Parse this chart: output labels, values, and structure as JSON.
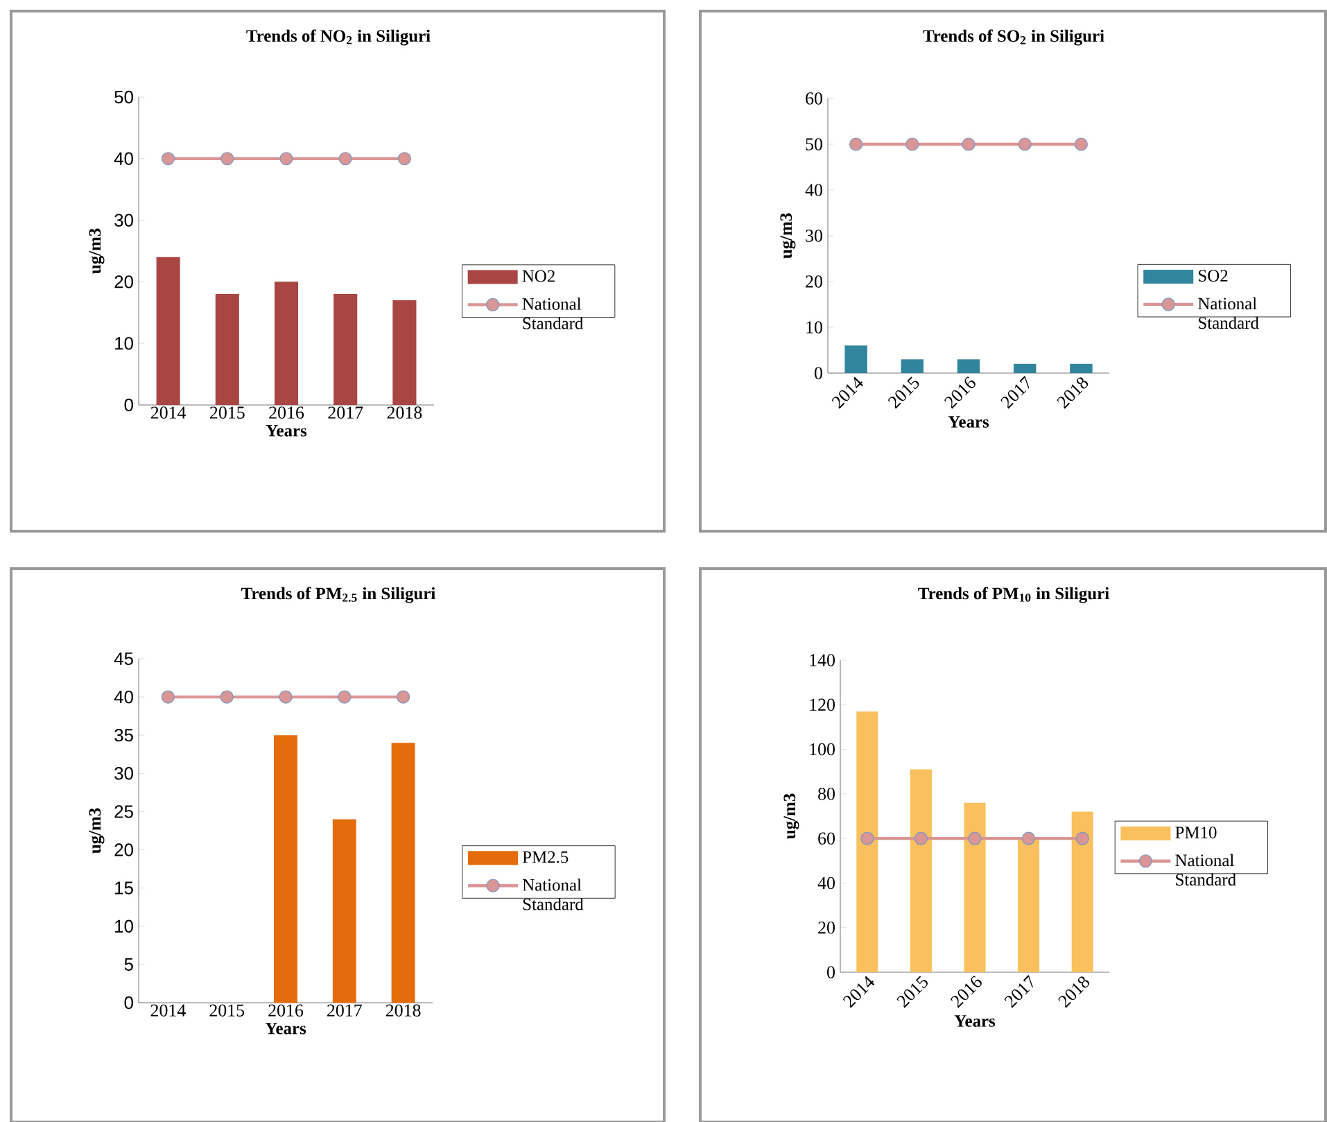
{
  "chart_data": [
    {
      "type": "bar",
      "title": "Trends of NO$_{2}$ in Siliguri",
      "xlabel": "Years",
      "ylabel": "ug/m3",
      "categories": [
        "2014",
        "2015",
        "2016",
        "2017",
        "2018"
      ],
      "ylim": [
        0,
        50
      ],
      "yticks": [
        0,
        10,
        20,
        30,
        40,
        50
      ],
      "legend": "right",
      "series": [
        {
          "name": "NO2",
          "color": "#a94543",
          "values": [
            24,
            18,
            20,
            18,
            17
          ]
        },
        {
          "name": "National Standard",
          "type": "line",
          "marker": "circle",
          "color": "#d99694",
          "values": [
            40,
            40,
            40,
            40,
            40
          ]
        }
      ]
    },
    {
      "type": "bar",
      "title": "Trends of SO$_{2}$ in Siliguri",
      "xlabel": "Years",
      "ylabel": "ug/m3",
      "categories": [
        "2014",
        "2015",
        "2016",
        "2017",
        "2018"
      ],
      "ylim": [
        0,
        60
      ],
      "yticks": [
        0,
        10,
        20,
        30,
        40,
        50,
        60
      ],
      "legend": "right",
      "series": [
        {
          "name": "SO2",
          "color": "#31859c",
          "values": [
            6,
            3,
            3,
            2,
            2
          ]
        },
        {
          "name": "National Standard",
          "type": "line",
          "marker": "circle",
          "color": "#d99694",
          "values": [
            50,
            50,
            50,
            50,
            50
          ]
        }
      ]
    },
    {
      "type": "bar",
      "title": "Trends of PM$_{2.5}$ in Siliguri",
      "xlabel": "Years",
      "ylabel": "ug/m3",
      "categories": [
        "2014",
        "2015",
        "2016",
        "2017",
        "2018"
      ],
      "ylim": [
        0,
        45
      ],
      "yticks": [
        0,
        5,
        10,
        15,
        20,
        25,
        30,
        35,
        40,
        45
      ],
      "legend": "right",
      "series": [
        {
          "name": "PM2.5",
          "color": "#e46c0a",
          "values": [
            null,
            null,
            35,
            24,
            34
          ]
        },
        {
          "name": "National Standard",
          "type": "line",
          "marker": "circle",
          "color": "#d99694",
          "values": [
            40,
            40,
            40,
            40,
            40
          ]
        }
      ]
    },
    {
      "type": "bar",
      "title": "Trends of PM$_{10}$ in Siliguri",
      "xlabel": "Years",
      "ylabel": "ug/m3",
      "categories": [
        "2014",
        "2015",
        "2016",
        "2017",
        "2018"
      ],
      "ylim": [
        0,
        140
      ],
      "yticks": [
        0,
        20,
        40,
        60,
        80,
        100,
        120,
        140
      ],
      "legend": "right",
      "series": [
        {
          "name": "PM10",
          "color": "#fac05e",
          "values": [
            117,
            91,
            76,
            60,
            72
          ]
        },
        {
          "name": "National Standard",
          "type": "line",
          "marker": "circle",
          "color": "#d99694",
          "values": [
            60,
            60,
            60,
            60,
            60
          ]
        }
      ]
    }
  ]
}
